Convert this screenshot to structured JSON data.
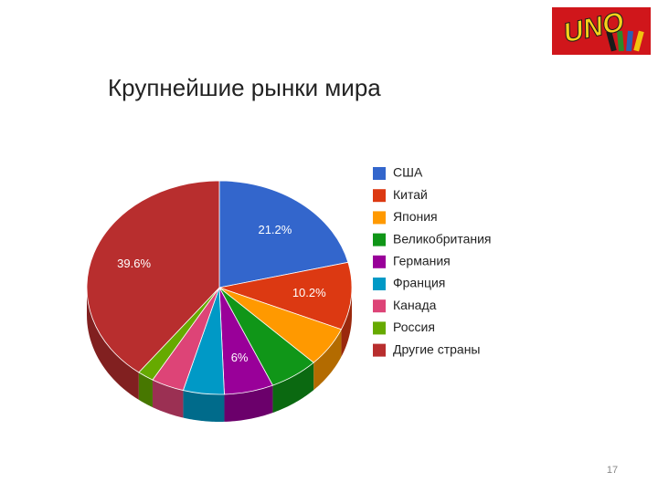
{
  "logo": "UNO",
  "page_number": "17",
  "chart_data": {
    "type": "pie3d",
    "title": "Крупнейшие рынки мира",
    "categories": [
      "США",
      "Китай",
      "Япония",
      "Великобритания",
      "Германия",
      "Франция",
      "Канада",
      "Россия",
      "Другие страны"
    ],
    "values": [
      21.2,
      10.2,
      6,
      6,
      6,
      5,
      4,
      2,
      39.6
    ],
    "value_labels": [
      "21.2%",
      "10.2%",
      null,
      null,
      "6%",
      null,
      null,
      null,
      "39.6%"
    ],
    "colors": [
      "#3366cc",
      "#dc3912",
      "#ff9900",
      "#109618",
      "#990099",
      "#0099c6",
      "#dd4477",
      "#66aa00",
      "#b82e2e"
    ],
    "legend": "right"
  }
}
